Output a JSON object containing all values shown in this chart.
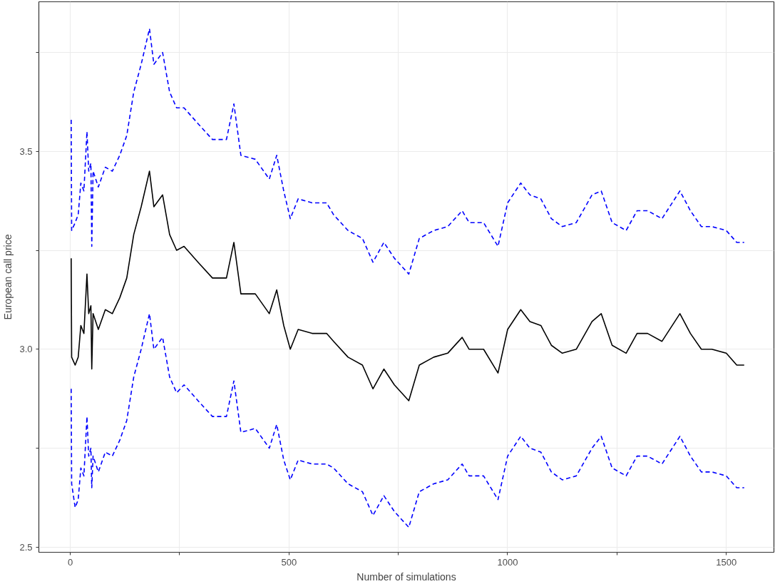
{
  "chart_data": {
    "type": "line",
    "xlabel": "Number of simulations",
    "ylabel": "European call price",
    "x": [
      2,
      3,
      11,
      18,
      24,
      31,
      38,
      42,
      47,
      49,
      52,
      64,
      80,
      96,
      113,
      129,
      145,
      162,
      181,
      191,
      211,
      227,
      243,
      260,
      292,
      325,
      357,
      374,
      390,
      423,
      455,
      472,
      488,
      503,
      521,
      553,
      586,
      602,
      635,
      668,
      692,
      717,
      741,
      774,
      798,
      831,
      863,
      896,
      912,
      945,
      978,
      1000,
      1030,
      1051,
      1076,
      1100,
      1125,
      1157,
      1193,
      1214,
      1239,
      1271,
      1296,
      1320,
      1353,
      1394,
      1418,
      1443,
      1467,
      1500,
      1524,
      1541
    ],
    "series": [
      {
        "color": "#000000",
        "line_style": "solid",
        "values": [
          3.23,
          2.98,
          2.96,
          2.98,
          3.06,
          3.04,
          3.19,
          3.09,
          3.11,
          2.95,
          3.09,
          3.05,
          3.1,
          3.09,
          3.13,
          3.18,
          3.29,
          3.36,
          3.45,
          3.36,
          3.39,
          3.29,
          3.25,
          3.26,
          3.22,
          3.18,
          3.18,
          3.27,
          3.14,
          3.14,
          3.09,
          3.15,
          3.06,
          3.0,
          3.05,
          3.04,
          3.04,
          3.02,
          2.98,
          2.96,
          2.9,
          2.95,
          2.91,
          2.87,
          2.96,
          2.98,
          2.99,
          3.03,
          3.0,
          3.0,
          2.94,
          3.05,
          3.1,
          3.07,
          3.06,
          3.01,
          2.99,
          3.0,
          3.07,
          3.09,
          3.01,
          2.99,
          3.04,
          3.04,
          3.02,
          3.09,
          3.04,
          3.0,
          3.0,
          2.99,
          2.96,
          2.96
        ]
      },
      {
        "color": "#0000ff",
        "line_style": "dashed",
        "values": [
          3.58,
          3.3,
          3.32,
          3.34,
          3.42,
          3.4,
          3.55,
          3.45,
          3.47,
          3.26,
          3.45,
          3.41,
          3.46,
          3.45,
          3.49,
          3.54,
          3.65,
          3.72,
          3.81,
          3.72,
          3.75,
          3.65,
          3.61,
          3.61,
          3.57,
          3.53,
          3.53,
          3.62,
          3.49,
          3.48,
          3.43,
          3.49,
          3.4,
          3.33,
          3.38,
          3.37,
          3.37,
          3.34,
          3.3,
          3.28,
          3.22,
          3.27,
          3.23,
          3.19,
          3.28,
          3.3,
          3.31,
          3.35,
          3.32,
          3.32,
          3.26,
          3.37,
          3.42,
          3.39,
          3.38,
          3.33,
          3.31,
          3.32,
          3.39,
          3.4,
          3.32,
          3.3,
          3.35,
          3.35,
          3.33,
          3.4,
          3.35,
          3.31,
          3.31,
          3.3,
          3.27,
          3.27
        ]
      },
      {
        "color": "#0000ff",
        "line_style": "dashed",
        "values": [
          2.9,
          2.66,
          2.6,
          2.62,
          2.7,
          2.68,
          2.83,
          2.73,
          2.75,
          2.65,
          2.73,
          2.69,
          2.74,
          2.73,
          2.77,
          2.82,
          2.93,
          3.0,
          3.09,
          3.0,
          3.03,
          2.93,
          2.89,
          2.91,
          2.87,
          2.83,
          2.83,
          2.92,
          2.79,
          2.8,
          2.75,
          2.81,
          2.72,
          2.67,
          2.72,
          2.71,
          2.71,
          2.7,
          2.66,
          2.64,
          2.58,
          2.63,
          2.59,
          2.55,
          2.64,
          2.66,
          2.67,
          2.71,
          2.68,
          2.68,
          2.62,
          2.73,
          2.78,
          2.75,
          2.74,
          2.69,
          2.67,
          2.68,
          2.75,
          2.78,
          2.7,
          2.68,
          2.73,
          2.73,
          2.71,
          2.78,
          2.73,
          2.69,
          2.69,
          2.68,
          2.65,
          2.65
        ]
      }
    ],
    "xlim": [
      -72,
      1609
    ],
    "ylim": [
      2.487,
      3.878
    ],
    "xticks": [
      0,
      {
        "value": 250,
        "label": null
      },
      500,
      {
        "value": 750,
        "label": null
      },
      1000,
      {
        "value": 1250,
        "label": null
      },
      1500
    ],
    "yticks": [
      2.5,
      {
        "value": 2.75,
        "label": null
      },
      {
        "value": 3,
        "label": "3.0"
      },
      {
        "value": 3.25,
        "label": null
      },
      3.5,
      {
        "value": 3.75,
        "label": null
      }
    ],
    "grid": true,
    "marker": "none"
  }
}
